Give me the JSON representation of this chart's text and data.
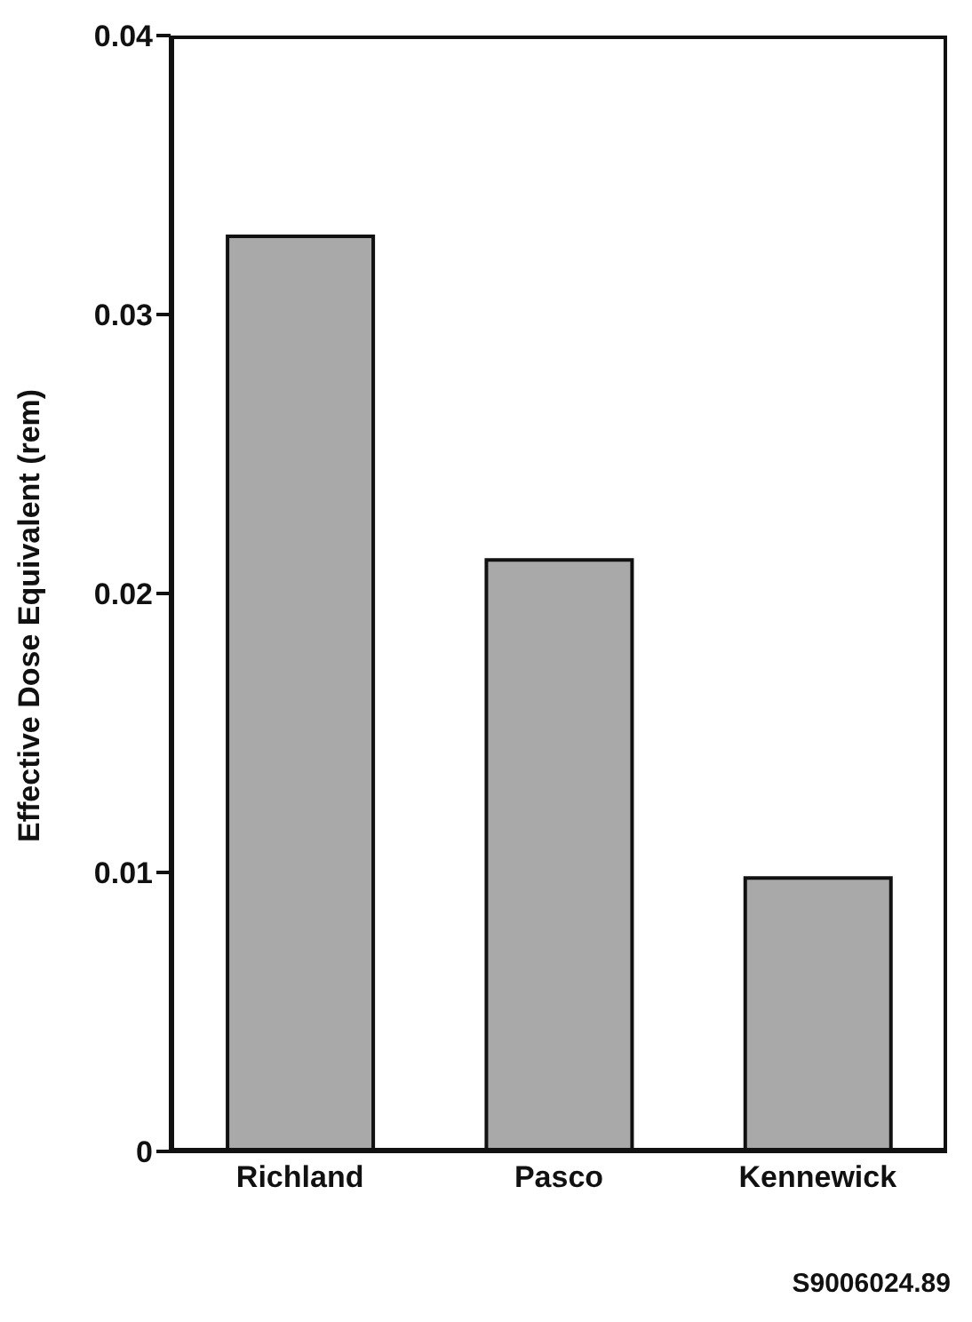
{
  "chart_data": {
    "type": "bar",
    "ylabel": "Effective Dose Equivalent (rem)",
    "categories": [
      "Richland",
      "Pasco",
      "Kennewick"
    ],
    "values": [
      0.0328,
      0.0212,
      0.0098
    ],
    "color": "#a9a9a9",
    "ylim": [
      0,
      0.04
    ],
    "yticks": [
      0,
      0.01,
      0.02,
      0.03,
      0.04
    ],
    "grid": false,
    "annotations": [
      "S9006024.89"
    ]
  }
}
